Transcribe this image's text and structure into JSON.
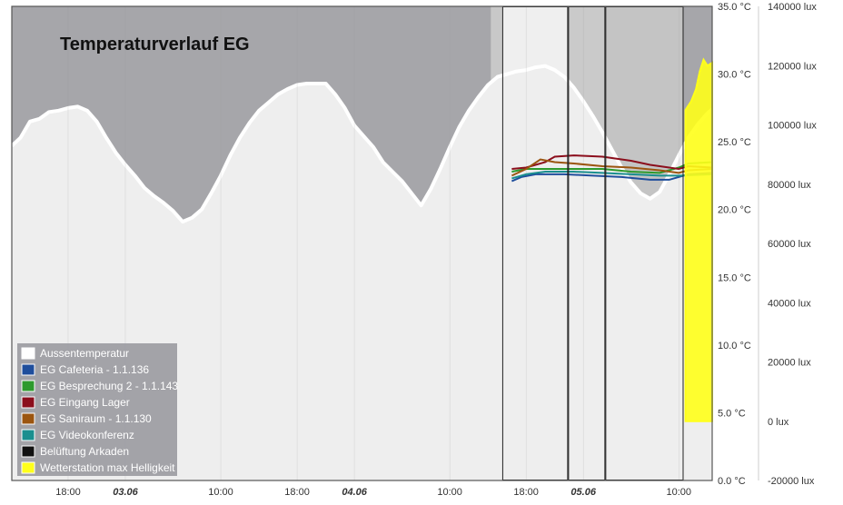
{
  "chart_data": {
    "type": "line",
    "title": "Temperaturverlauf EG",
    "x_ticks": [
      "18:00",
      "03.06",
      "10:00",
      "18:00",
      "04.06",
      "10:00",
      "18:00",
      "05.06",
      "10:00"
    ],
    "x_ticks_bold": [
      false,
      true,
      false,
      false,
      true,
      false,
      false,
      true,
      false
    ],
    "x_tick_hours": [
      18,
      24,
      34,
      42,
      48,
      58,
      66,
      72,
      82
    ],
    "x_range_hours": [
      12.1,
      85.5
    ],
    "y_left": {
      "unit": "°C",
      "range": [
        0,
        35
      ],
      "ticks": [
        "0.0 °C",
        "5.0 °C",
        "10.0 °C",
        "15.0 °C",
        "20.0 °C",
        "25.0 °C",
        "30.0 °C",
        "35.0 °C"
      ]
    },
    "y_right": {
      "unit": "lux",
      "range": [
        -20000,
        140000
      ],
      "ticks": [
        "-20000 lux",
        "0 lux",
        "20000 lux",
        "40000 lux",
        "60000 lux",
        "80000 lux",
        "100000 lux",
        "120000 lux",
        "140000 lux"
      ]
    },
    "shaded_periods_hours": [
      [
        62.3,
        63.5
      ],
      [
        63.5,
        70.4
      ],
      [
        70.4,
        74.3
      ],
      [
        74.3,
        82.5
      ]
    ],
    "series": [
      {
        "name": "Aussentemperatur",
        "color": "#ffffff",
        "points": [
          [
            12.1,
            24.7
          ],
          [
            13,
            25.3
          ],
          [
            14,
            26.5
          ],
          [
            15,
            26.7
          ],
          [
            16,
            27.2
          ],
          [
            17,
            27.3
          ],
          [
            18,
            27.5
          ],
          [
            19,
            27.6
          ],
          [
            20,
            27.3
          ],
          [
            21,
            26.5
          ],
          [
            22,
            25.3
          ],
          [
            23,
            24.2
          ],
          [
            24,
            23.3
          ],
          [
            25,
            22.5
          ],
          [
            26,
            21.6
          ],
          [
            27,
            21.0
          ],
          [
            28,
            20.5
          ],
          [
            29,
            19.9
          ],
          [
            30,
            19.1
          ],
          [
            31,
            19.4
          ],
          [
            32,
            20.0
          ],
          [
            33,
            21.2
          ],
          [
            34,
            22.5
          ],
          [
            35,
            24.0
          ],
          [
            36,
            25.3
          ],
          [
            37,
            26.4
          ],
          [
            38,
            27.3
          ],
          [
            39,
            27.9
          ],
          [
            40,
            28.5
          ],
          [
            41,
            28.9
          ],
          [
            42,
            29.2
          ],
          [
            43,
            29.3
          ],
          [
            44,
            29.3
          ],
          [
            45,
            29.3
          ],
          [
            46,
            28.5
          ],
          [
            47,
            27.5
          ],
          [
            48,
            26.2
          ],
          [
            49,
            25.4
          ],
          [
            50,
            24.6
          ],
          [
            51,
            23.5
          ],
          [
            52,
            22.8
          ],
          [
            53,
            22.1
          ],
          [
            54,
            21.2
          ],
          [
            55,
            20.3
          ],
          [
            56,
            21.5
          ],
          [
            57,
            23.0
          ],
          [
            58,
            24.6
          ],
          [
            59,
            26.1
          ],
          [
            60,
            27.3
          ],
          [
            61,
            28.3
          ],
          [
            62,
            29.2
          ],
          [
            63,
            29.8
          ],
          [
            64,
            30.0
          ],
          [
            65,
            30.2
          ],
          [
            66,
            30.3
          ],
          [
            67,
            30.5
          ],
          [
            68,
            30.6
          ],
          [
            69,
            30.3
          ],
          [
            70,
            29.8
          ],
          [
            71,
            29.0
          ],
          [
            72,
            28.0
          ],
          [
            73,
            26.9
          ],
          [
            74,
            25.7
          ],
          [
            75,
            24.4
          ],
          [
            76,
            23.1
          ],
          [
            77,
            22.0
          ],
          [
            78,
            21.2
          ],
          [
            79,
            20.8
          ],
          [
            80,
            21.3
          ],
          [
            81,
            22.6
          ],
          [
            82,
            24.0
          ],
          [
            83,
            25.3
          ],
          [
            84,
            26.3
          ],
          [
            85,
            27.1
          ],
          [
            85.5,
            27.4
          ]
        ]
      },
      {
        "name": "EG Cafeteria - 1.1.136",
        "color": "#1f4e9c",
        "points": [
          [
            64.5,
            22.1
          ],
          [
            65.5,
            22.4
          ],
          [
            67,
            22.6
          ],
          [
            70,
            22.6
          ],
          [
            73,
            22.5
          ],
          [
            76,
            22.4
          ],
          [
            79,
            22.2
          ],
          [
            81,
            22.2
          ],
          [
            83,
            22.6
          ],
          [
            85.5,
            22.7
          ]
        ]
      },
      {
        "name": "EG Besprechung 2 - 1.1.143",
        "color": "#2d9a2d",
        "points": [
          [
            64.5,
            22.8
          ],
          [
            66,
            23.0
          ],
          [
            68,
            23.0
          ],
          [
            71,
            23.0
          ],
          [
            74,
            23.0
          ],
          [
            77,
            22.8
          ],
          [
            80,
            22.7
          ],
          [
            82,
            23.1
          ],
          [
            83,
            23.4
          ],
          [
            85.5,
            23.5
          ]
        ]
      },
      {
        "name": "EG Eingang Lager",
        "color": "#8b0e1c",
        "points": [
          [
            64.5,
            23.0
          ],
          [
            66,
            23.1
          ],
          [
            68,
            23.5
          ],
          [
            69,
            23.9
          ],
          [
            71,
            24.0
          ],
          [
            74,
            23.9
          ],
          [
            77,
            23.6
          ],
          [
            79,
            23.3
          ],
          [
            81,
            23.1
          ],
          [
            82,
            23.0
          ],
          [
            83,
            23.2
          ],
          [
            85.5,
            23.1
          ]
        ]
      },
      {
        "name": "EG Saniraum - 1.1.130",
        "color": "#9b5510",
        "points": [
          [
            64.5,
            22.5
          ],
          [
            66,
            23.0
          ],
          [
            67.5,
            23.7
          ],
          [
            69,
            23.5
          ],
          [
            71,
            23.4
          ],
          [
            74,
            23.2
          ],
          [
            77,
            23.1
          ],
          [
            80,
            22.9
          ],
          [
            82,
            22.7
          ],
          [
            83,
            22.9
          ],
          [
            85.5,
            23.0
          ]
        ]
      },
      {
        "name": "EG Videokonferenz",
        "color": "#1a8f8f",
        "points": [
          [
            64.5,
            22.3
          ],
          [
            66,
            22.6
          ],
          [
            68,
            22.8
          ],
          [
            71,
            22.8
          ],
          [
            74,
            22.7
          ],
          [
            77,
            22.6
          ],
          [
            80,
            22.5
          ],
          [
            82,
            22.5
          ],
          [
            85.5,
            22.6
          ]
        ]
      },
      {
        "name": "Belüftung Arkaden",
        "color": "#111111",
        "points": []
      },
      {
        "name": "Wetterstation max Helligkeit",
        "color": "#ffff1a",
        "axis": "right",
        "points": [
          [
            82.7,
            0
          ],
          [
            82.7,
            105000
          ],
          [
            83.3,
            108000
          ],
          [
            83.8,
            112000
          ],
          [
            84.2,
            118000
          ],
          [
            84.6,
            122000
          ],
          [
            85,
            120000
          ],
          [
            85.5,
            121000
          ],
          [
            85.5,
            0
          ]
        ]
      }
    ],
    "legend_position": "bottom-left"
  }
}
